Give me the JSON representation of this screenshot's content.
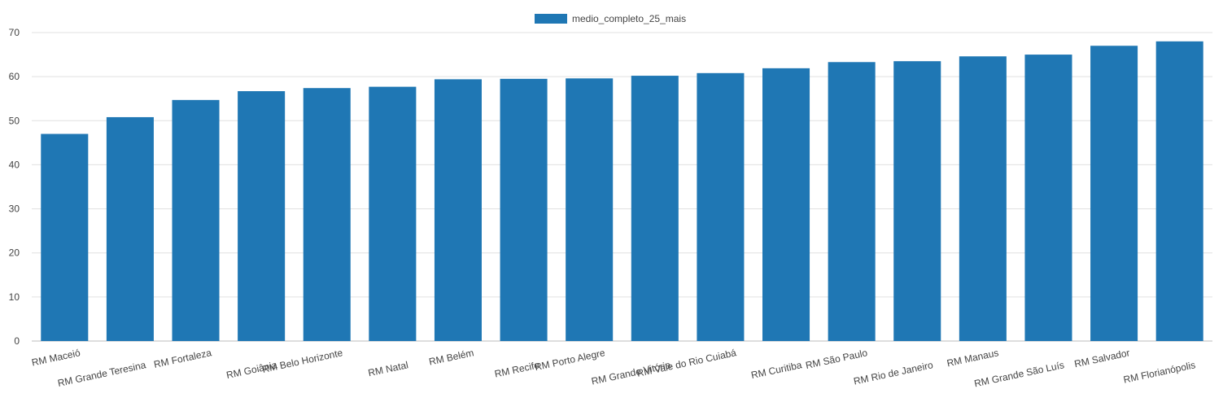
{
  "chart_data": {
    "type": "bar",
    "categories": [
      "RM Maceió",
      "RM Grande Teresina",
      "RM Fortaleza",
      "RM Goiânia",
      "RM Belo Horizonte",
      "RM Natal",
      "RM Belém",
      "RM Recife",
      "RM Porto Alegre",
      "RM Grande Vitória",
      "RM Vale do Rio Cuiabá",
      "RM Curitiba",
      "RM São Paulo",
      "RM Rio de Janeiro",
      "RM Manaus",
      "RM Grande São Luís",
      "RM Salvador",
      "RM Florianópolis"
    ],
    "series": [
      {
        "name": "medio_completo_25_mais",
        "color": "#1f77b4",
        "values": [
          47.0,
          50.8,
          54.7,
          56.7,
          57.4,
          57.7,
          59.4,
          59.5,
          59.6,
          60.2,
          60.8,
          61.9,
          63.3,
          63.5,
          64.6,
          65.0,
          67.0,
          68.0
        ]
      }
    ],
    "title": "",
    "xlabel": "",
    "ylabel": "",
    "ylim": [
      0,
      70
    ],
    "yticks": [
      0,
      10,
      20,
      30,
      40,
      50,
      60,
      70
    ],
    "grid": true,
    "legend_position": "top-center"
  }
}
